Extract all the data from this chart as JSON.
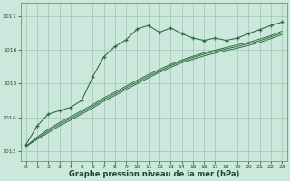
{
  "bg_color": "#cce8dc",
  "grid_color": "#9ac8b4",
  "line_color": "#2d6e3e",
  "marker_color": "#2d6e3e",
  "xlabel": "Graphe pression niveau de la mer (hPa)",
  "xlabel_color": "#1a4a2a",
  "ylabel_color": "#1a4a2a",
  "xlim": [
    -0.5,
    23.5
  ],
  "ylim": [
    1012.7,
    1017.4
  ],
  "yticks": [
    1013,
    1014,
    1015,
    1016,
    1017
  ],
  "xticks": [
    0,
    1,
    2,
    3,
    4,
    5,
    6,
    7,
    8,
    9,
    10,
    11,
    12,
    13,
    14,
    15,
    16,
    17,
    18,
    19,
    20,
    21,
    22,
    23
  ],
  "main_line_x": [
    0,
    1,
    2,
    3,
    4,
    5,
    6,
    7,
    8,
    9,
    10,
    11,
    12,
    13,
    14,
    15,
    16,
    17,
    18,
    19,
    20,
    21,
    22,
    23
  ],
  "main_line_y": [
    1013.2,
    1013.75,
    1014.1,
    1014.2,
    1014.3,
    1014.5,
    1015.2,
    1015.8,
    1016.1,
    1016.3,
    1016.62,
    1016.72,
    1016.52,
    1016.65,
    1016.48,
    1016.35,
    1016.28,
    1016.35,
    1016.28,
    1016.35,
    1016.48,
    1016.6,
    1016.72,
    1016.82
  ],
  "smooth_line1": [
    1013.15,
    1013.35,
    1013.55,
    1013.75,
    1013.92,
    1014.1,
    1014.28,
    1014.48,
    1014.65,
    1014.83,
    1015.0,
    1015.17,
    1015.33,
    1015.48,
    1015.62,
    1015.72,
    1015.82,
    1015.9,
    1015.98,
    1016.05,
    1016.13,
    1016.22,
    1016.33,
    1016.45
  ],
  "smooth_line2": [
    1013.15,
    1013.38,
    1013.6,
    1013.8,
    1013.97,
    1014.15,
    1014.33,
    1014.53,
    1014.7,
    1014.88,
    1015.05,
    1015.22,
    1015.37,
    1015.53,
    1015.66,
    1015.77,
    1015.87,
    1015.95,
    1016.03,
    1016.1,
    1016.18,
    1016.27,
    1016.38,
    1016.5
  ],
  "smooth_line3": [
    1013.15,
    1013.42,
    1013.65,
    1013.85,
    1014.02,
    1014.2,
    1014.38,
    1014.58,
    1014.75,
    1014.93,
    1015.1,
    1015.27,
    1015.42,
    1015.57,
    1015.7,
    1015.81,
    1015.91,
    1015.99,
    1016.07,
    1016.15,
    1016.22,
    1016.32,
    1016.42,
    1016.55
  ]
}
